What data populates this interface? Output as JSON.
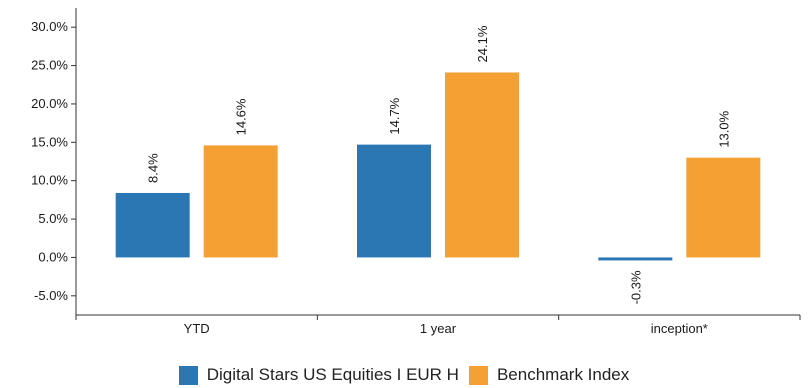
{
  "chart_data": {
    "type": "bar",
    "title": "",
    "xlabel": "",
    "ylabel": "",
    "categories": [
      "YTD",
      "1 year",
      "inception*"
    ],
    "series": [
      {
        "name": "Digital Stars US Equities I EUR H",
        "values": [
          8.4,
          14.7,
          -0.3
        ],
        "labels": [
          "8.4%",
          "14.7%",
          "-0.3%"
        ],
        "color": "#2a77b4"
      },
      {
        "name": "Benchmark Index",
        "values": [
          14.6,
          24.1,
          13.0
        ],
        "labels": [
          "14.6%",
          "24.1%",
          "13.0%"
        ],
        "color": "#f4a032"
      }
    ],
    "ylim": [
      -7.5,
      32.5
    ],
    "yticks": [
      -5,
      0,
      5,
      10,
      15,
      20,
      25,
      30
    ],
    "ytick_labels": [
      "-5.0%",
      "0.0%",
      "5.0%",
      "10.0%",
      "15.0%",
      "20.0%",
      "25.0%",
      "30.0%"
    ],
    "grid": false,
    "legend_position": "bottom-center"
  }
}
